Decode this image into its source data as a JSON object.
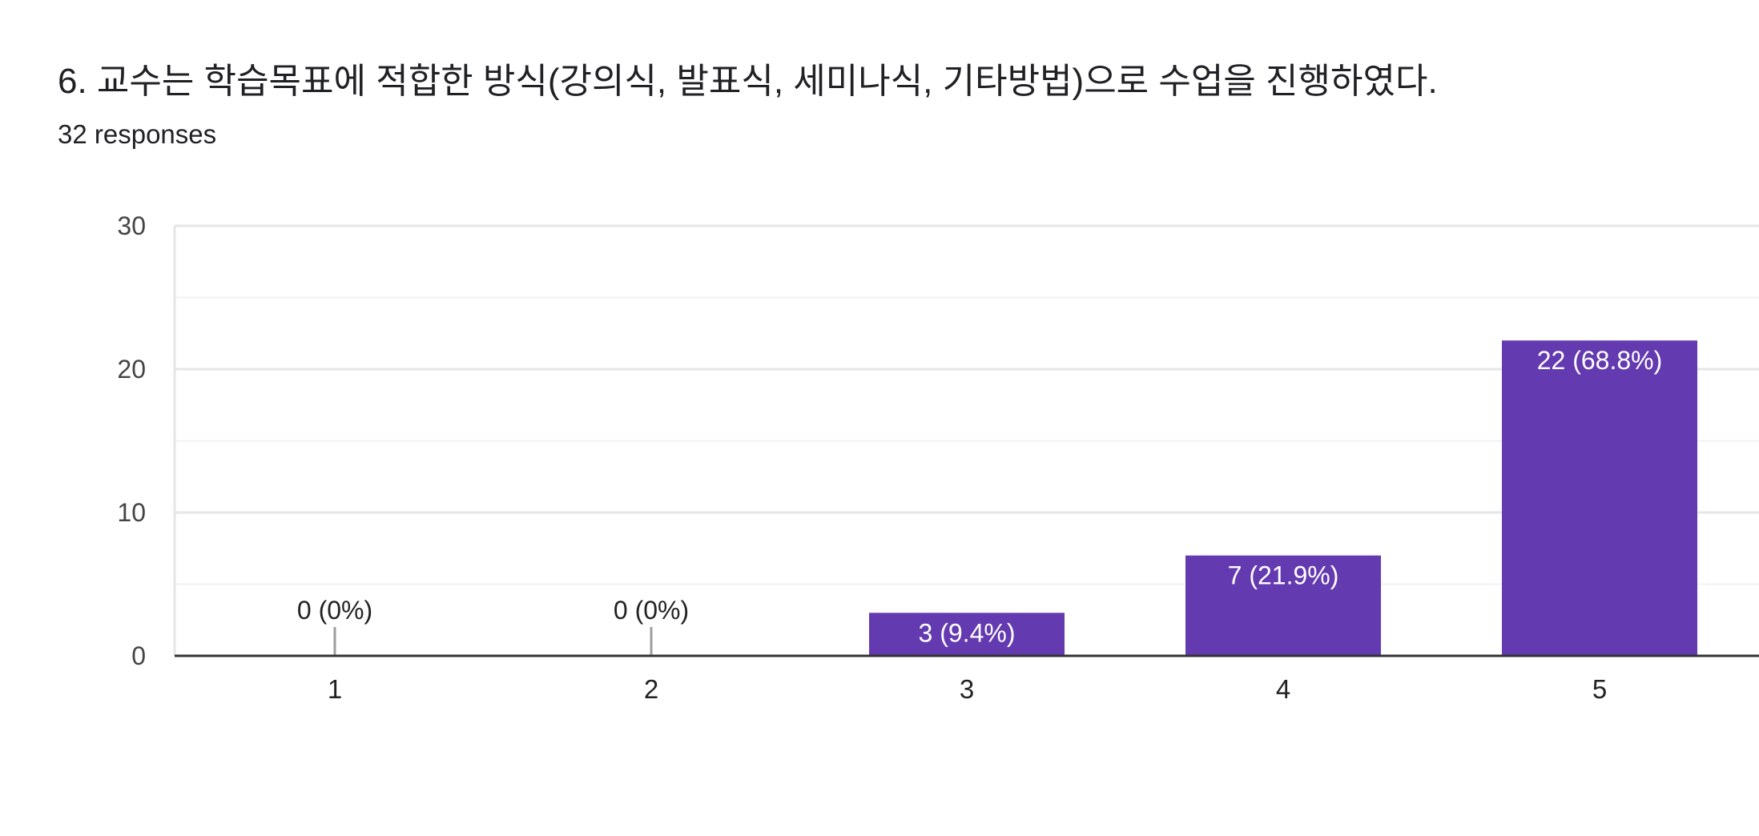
{
  "question": {
    "title": "6. 교수는 학습목표에 적합한 방식(강의식, 발표식, 세미나식, 기타방법)으로 수업을 진행하였다.",
    "response_count": "32 responses"
  },
  "colors": {
    "bar": "#643AB0",
    "label_inside": "#ffffff",
    "label_outside": "#222222",
    "grid_major": "#e6e6e6",
    "grid_minor": "#f2f2f2",
    "baseline": "#333333",
    "zero_stub": "#9e9e9e"
  },
  "chart_data": {
    "type": "bar",
    "categories": [
      "1",
      "2",
      "3",
      "4",
      "5"
    ],
    "values": [
      0,
      0,
      3,
      7,
      22
    ],
    "data_labels": [
      "0 (0%)",
      "0 (0%)",
      "3 (9.4%)",
      "7 (21.9%)",
      "22 (68.8%)"
    ],
    "title": "",
    "xlabel": "",
    "ylabel": "",
    "ylim": [
      0,
      30
    ],
    "yticks": [
      0,
      10,
      20,
      30
    ],
    "minor_grid_step": 5,
    "grid": true,
    "legend": "none"
  }
}
